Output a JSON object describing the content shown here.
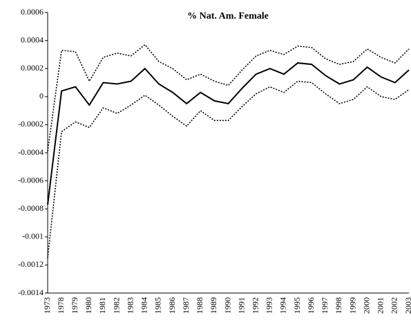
{
  "chart_data": {
    "type": "line",
    "title": "% Nat. Am. Female",
    "categories": [
      "1973",
      "1978",
      "1979",
      "1980",
      "1981",
      "1982",
      "1983",
      "1984",
      "1985",
      "1986",
      "1987",
      "1988",
      "1989",
      "1990",
      "1991",
      "1992",
      "1993",
      "1994",
      "1995",
      "1996",
      "1997",
      "1998",
      "1999",
      "2000",
      "2001",
      "2002",
      "2003"
    ],
    "series": [
      {
        "color": "#000000",
        "dash": "solid",
        "values": [
          -0.00077,
          4e-05,
          7e-05,
          -6e-05,
          0.0001,
          9e-05,
          0.00011,
          0.0002,
          9e-05,
          3e-05,
          -5e-05,
          3e-05,
          -3e-05,
          -5e-05,
          6e-05,
          0.00016,
          0.0002,
          0.00016,
          0.00024,
          0.00023,
          0.00015,
          9e-05,
          0.00012,
          0.00021,
          0.00014,
          0.0001,
          0.00019
        ]
      },
      {
        "color": "#000000",
        "dash": "dotted",
        "values": [
          -0.00039,
          0.00033,
          0.00032,
          0.00011,
          0.00028,
          0.00031,
          0.00029,
          0.00037,
          0.00025,
          0.0002,
          0.00012,
          0.00016,
          0.00011,
          8e-05,
          0.00019,
          0.00029,
          0.00033,
          0.0003,
          0.00036,
          0.00035,
          0.00027,
          0.00023,
          0.00025,
          0.00034,
          0.00028,
          0.00024,
          0.00034
        ]
      },
      {
        "color": "#000000",
        "dash": "dotted",
        "values": [
          -0.00115,
          -0.00025,
          -0.00018,
          -0.00022,
          -8e-05,
          -0.00012,
          -6e-05,
          1e-05,
          -6e-05,
          -0.00014,
          -0.00021,
          -0.0001,
          -0.00017,
          -0.00017,
          -7e-05,
          2e-05,
          7e-05,
          3e-05,
          0.00011,
          0.0001,
          2e-05,
          -5e-05,
          -2e-05,
          7e-05,
          0,
          -2e-05,
          5e-05
        ]
      }
    ],
    "ylim": [
      -0.0014,
      0.0006
    ],
    "yticks": [
      -0.0014,
      -0.0012,
      -0.001,
      -0.0008,
      -0.0006,
      -0.0004,
      -0.0002,
      0,
      0.0002,
      0.0004,
      0.0006
    ],
    "grid": false
  }
}
